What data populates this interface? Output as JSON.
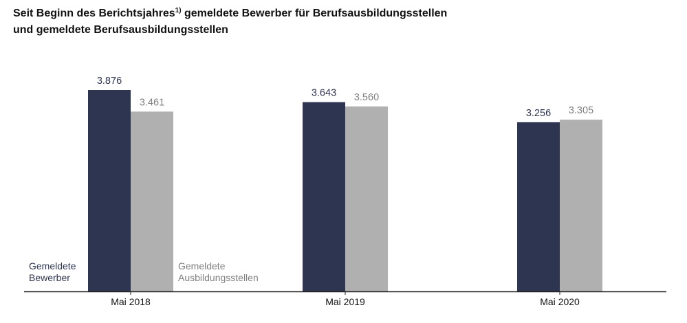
{
  "title": {
    "line1_pre": "Seit Beginn des Berichtsjahres",
    "footnote_mark": "1)",
    "line1_post": " gemeldete Bewerber für Berufsausbildungsstellen",
    "line2": "und gemeldete Berufsausbildungsstellen"
  },
  "colors": {
    "bewerber": "#2e3550",
    "stellen": "#b0b0b0",
    "stellen_text": "#7f7f7f",
    "axis": "#222222"
  },
  "chart_data": {
    "type": "bar",
    "categories": [
      "Mai 2018",
      "Mai 2019",
      "Mai 2020"
    ],
    "series": [
      {
        "name": "Gemeldete Bewerber",
        "name_lines": [
          "Gemeldete",
          "Bewerber"
        ],
        "values": [
          3876,
          3643,
          3256
        ],
        "labels": [
          "3.876",
          "3.643",
          "3.256"
        ]
      },
      {
        "name": "Gemeldete Ausbildungsstellen",
        "name_lines": [
          "Gemeldete",
          "Ausbildungsstellen"
        ],
        "values": [
          3461,
          3560,
          3305
        ],
        "labels": [
          "3.461",
          "3.560",
          "3.305"
        ]
      }
    ],
    "ylim": [
      0,
      3876
    ],
    "grid": false,
    "legend": "inside-bottom-left"
  }
}
